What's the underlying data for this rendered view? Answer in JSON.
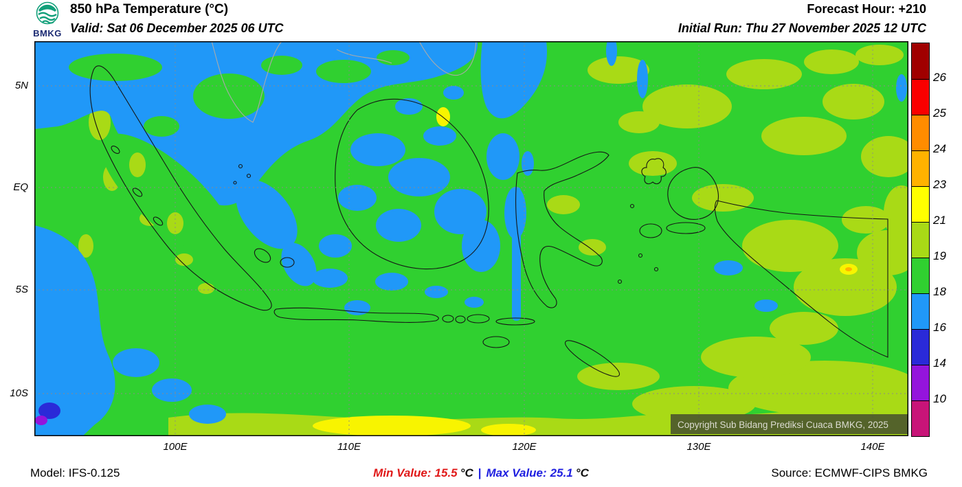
{
  "header": {
    "logo_text": "BMKG",
    "title": "850 hPa Temperature (°C)",
    "valid": "Valid: Sat 06 December 2025 06 UTC",
    "forecast_hour": "Forecast Hour: +210",
    "initial_run": "Initial Run: Thu 27 November 2025 12 UTC"
  },
  "map": {
    "x_ticks": [
      "100E",
      "110E",
      "120E",
      "130E",
      "140E"
    ],
    "y_ticks": [
      "5N",
      "EQ",
      "5S",
      "10S"
    ],
    "copyright": "Copyright Sub Bidang Prediksi Cuaca BMKG, 2025"
  },
  "legend": {
    "entries": [
      {
        "color": "#a00000",
        "label": "26"
      },
      {
        "color": "#fa0000",
        "label": "25"
      },
      {
        "color": "#ff8c00",
        "label": "24"
      },
      {
        "color": "#ffb200",
        "label": "23"
      },
      {
        "color": "#ffff00",
        "label": "21"
      },
      {
        "color": "#a9da16",
        "label": "19"
      },
      {
        "color": "#30d030",
        "label": "18"
      },
      {
        "color": "#2098f8",
        "label": "16"
      },
      {
        "color": "#2a2ad8",
        "label": "14"
      },
      {
        "color": "#9414dc",
        "label": "10"
      },
      {
        "color": "#c81478",
        "label": ""
      }
    ]
  },
  "footer": {
    "model": "Model: IFS-0.125",
    "min_label": "Min Value:",
    "min_value": "15.5",
    "max_label": "Max Value:",
    "max_value": "25.1",
    "unit": "°C",
    "separator": "|",
    "source": "Source: ECMWF-CIPS BMKG"
  }
}
